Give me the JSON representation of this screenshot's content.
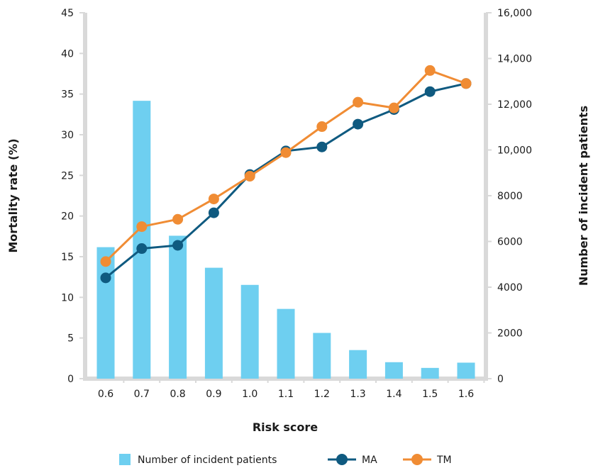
{
  "chart_data": {
    "type": "bar",
    "categories": [
      "0.6",
      "0.7",
      "0.8",
      "0.9",
      "1.0",
      "1.1",
      "1.2",
      "1.3",
      "1.4",
      "1.5",
      "1.6"
    ],
    "xlabel": "Risk score",
    "ylabel_left": "Mortality rate (%)",
    "ylabel_right": "Number of incident patients",
    "ylim_left": [
      0,
      45
    ],
    "ylim_right": [
      0,
      16000
    ],
    "yticks_left": [
      "0",
      "5",
      "10",
      "15",
      "20",
      "25",
      "30",
      "35",
      "40",
      "45"
    ],
    "yticks_right": [
      "0",
      "2000",
      "4000",
      "6000",
      "8000",
      "10,000",
      "12,000",
      "14,000",
      "16,000"
    ],
    "grid": false,
    "legend_position": "bottom",
    "series": [
      {
        "name": "Number of incident patients",
        "type": "bar",
        "axis": "right",
        "color": "#6ecff0",
        "values": [
          5750,
          12150,
          6250,
          4850,
          4100,
          3050,
          2000,
          1250,
          720,
          470,
          700
        ]
      },
      {
        "name": "MA",
        "type": "line",
        "axis": "left",
        "color": "#0f5a80",
        "values": [
          12.4,
          16.0,
          16.4,
          20.4,
          25.1,
          28.0,
          28.5,
          31.3,
          33.1,
          35.3,
          36.3
        ]
      },
      {
        "name": "TM",
        "type": "line",
        "axis": "left",
        "color": "#f08c34",
        "values": [
          14.4,
          18.7,
          19.6,
          22.1,
          24.9,
          27.8,
          31.0,
          34.0,
          33.3,
          37.9,
          36.3
        ]
      }
    ]
  }
}
